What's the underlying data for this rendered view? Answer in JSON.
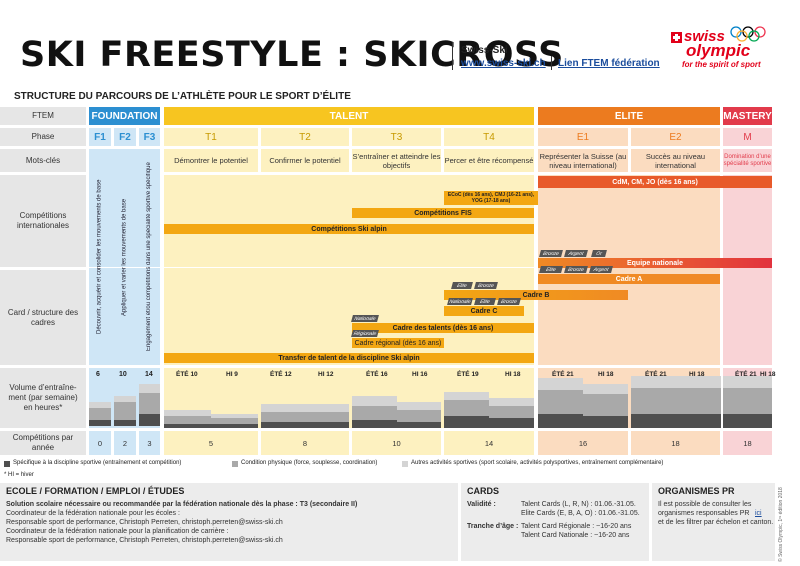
{
  "header": {
    "title": "SKI FREESTYLE : SKICROSS",
    "org": "Swiss-Ski",
    "url": "www.swiss-ski.ch",
    "ftem_link": "Lien FTEM fédération",
    "logo_swiss": "swiss",
    "logo_olympic": "olympic",
    "logo_tagline": "for the spirit of sport"
  },
  "subtitle": "STRUCTURE DU PARCOURS DE L’ATHLÈTE POUR LE SPORT D’ÉLITE",
  "rows": {
    "ftem": "FTEM",
    "phase": "Phase",
    "keywords": "Mots-clés",
    "competitions": "Compétitions internationales",
    "card": "Card / structure des cadres",
    "volume": "Volume d’entraîne-ment (par semaine) en heures*",
    "comp_per_year": "Compétitions par année"
  },
  "ftem": {
    "foundation": "FOUNDATION",
    "talent": "TALENT",
    "elite": "ELITE",
    "mastery": "MASTERY"
  },
  "phases": [
    "F1",
    "F2",
    "F3",
    "T1",
    "T2",
    "T3",
    "T4",
    "E1",
    "E2",
    "M"
  ],
  "keywords": {
    "T1": "Démontrer le potentiel",
    "T2": "Confirmer le potentiel",
    "T3": "S’entraîner et atteindre les objectifs",
    "T4": "Percer et être récompensé",
    "E1": "Représenter la Suisse (au niveau international)",
    "E2": "Succès au niveau international",
    "M": "Domination d’une spécialité sportive"
  },
  "foundation_text": {
    "F1": "Découvrir, acquérir et consolider les mouvements de base",
    "F2": "Appliquer et varier les mouvements de base",
    "F3": "Engagement et/ou compétitions dans une spécialité sportive spécifique"
  },
  "competitions": {
    "cdm": "CdM, CM, JO (dès 16 ans)",
    "ecoc": "ECoC (dès 16 ans), CMJ (16-21 ans), YOG (17-18 ans)",
    "fis": "Compétitions FIS",
    "alpin": "Compétitions Ski alpin"
  },
  "cards": {
    "equipe": "Equipe nationale",
    "cadre_a": "Cadre A",
    "cadre_b": "Cadre B",
    "cadre_c": "Cadre C",
    "talents": "Cadre des talents (dès 16 ans)",
    "regional": "Cadre régional (dès 16 ans)",
    "transfer": "Transfer de talent de la discipline Ski alpin",
    "tags": {
      "bronze": "Bronze",
      "argent": "Argent",
      "or": "Or",
      "elite": "Elite",
      "nationale": "Nationale",
      "regionale": "Régionale"
    }
  },
  "volume": {
    "F1": "6",
    "F2": "10",
    "F3": "14",
    "seasons": [
      "ÉTÉ 10",
      "HI 9",
      "ÉTÉ 12",
      "HI 12",
      "ÉTÉ 16",
      "HI 16",
      "ÉTÉ 19",
      "HI 18",
      "ÉTÉ 21",
      "HI 18",
      "ÉTÉ 21",
      "HI 18",
      "ÉTÉ 21",
      "HI 18"
    ],
    "bar_numbers": [
      "4",
      "2",
      "6",
      "2",
      "7",
      "4",
      "2",
      "5",
      "4",
      "3",
      "5",
      "4",
      "3",
      "7",
      "4",
      "5",
      "4",
      "3",
      "8",
      "5",
      "4",
      "3",
      "6",
      "8",
      "4",
      "7",
      "4",
      "2",
      "12",
      "8",
      "2",
      "7",
      "4",
      "3",
      "12",
      "8",
      "4",
      "2",
      "7",
      "4",
      "3",
      "13",
      "7",
      "4",
      "2",
      "7",
      "4",
      "3",
      "13",
      "7",
      "4",
      "2",
      "7",
      "4",
      "3",
      "13",
      "7",
      "4",
      "2"
    ]
  },
  "comp_per_year": {
    "F1": "0",
    "F2": "2",
    "F3": "3",
    "T1": "5",
    "T2": "8",
    "T3": "10",
    "T4": "14",
    "E1": "16",
    "E2": "18",
    "M": "18"
  },
  "legend": {
    "specific": "Spécifique à la discipline sportive (entraînement et compétition)",
    "physical": "Condition physique (force, souplesse, coordination)",
    "other": "Autres activités sportives (sport scolaire, activités polysportives, entraînement complémentaire)",
    "hi_note": "* HI = hiver"
  },
  "footer": {
    "school_title": "ECOLE / FORMATION / EMPLOI / ÉTUDES",
    "school_bold": "Solution scolaire nécessaire ou recommandée par la fédération nationale dès la phase : T3 (secondaire II)",
    "school_lines": [
      "Coordinateur de la fédération nationale pour les écoles :",
      "Responsable sport de performance, Christoph Perreten, christoph.perreten@swiss-ski.ch",
      "Coordinateur de la fédération nationale pour la planification de carrière :",
      "Responsable sport de performance, Christoph Perreten, christoph.perreten@swiss-ski.ch"
    ],
    "cards_title": "CARDS",
    "validite_label": "Validité :",
    "validite_1": "Talent Cards (L, R, N) : 01.06.-31.05.",
    "validite_2": "Elite Cards (E, B, A, O) : 01.06.-31.05.",
    "tranche_label": "Tranche d’âge :",
    "tranche_1": "Talent Card Régionale : ~16-20 ans",
    "tranche_2": "Talent Card Nationale : ~16-20 ans",
    "pr_title": "ORGANISMES PR",
    "pr_text_1": "Il est possible de consulter les",
    "pr_text_2": "organismes responsables PR",
    "pr_link": "ici",
    "pr_text_3": "et de les filtrer par échelon et canton.",
    "copyright": "© Swiss Olympic, 1ʳᵉ édition 2018"
  },
  "colors": {
    "foundation": "#2c8fd1",
    "foundation_light": "#cfe6f6",
    "talent": "#f7c520",
    "talent_light": "#fdf1c0",
    "elite": "#ec7b1f",
    "elite_light": "#fbdcc0",
    "mastery": "#e23b4b",
    "mastery_light": "#f9d3d6",
    "dark": "#4f4f4f",
    "mid": "#a9a9a9",
    "light": "#d4d4d4"
  }
}
